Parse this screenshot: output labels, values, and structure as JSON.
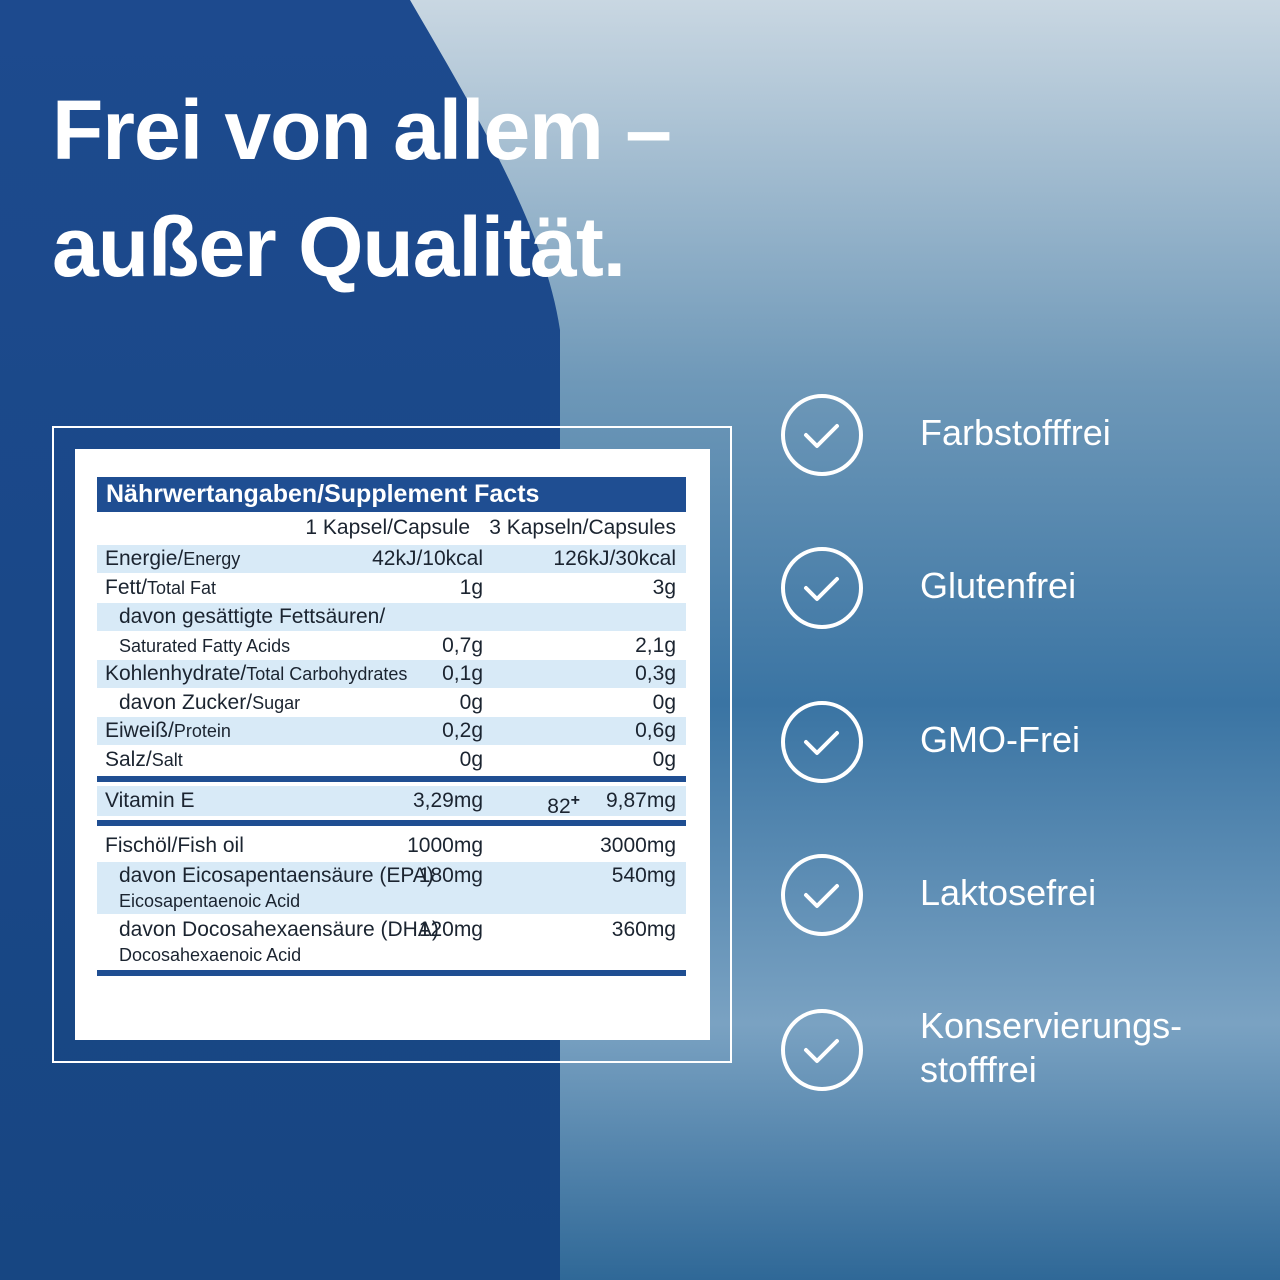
{
  "headline": [
    "Frei von allem –",
    "außer Qualität."
  ],
  "table": {
    "title": "Nährwertangaben/Supplement Facts",
    "columns": [
      "1 Kapsel/Capsule",
      "3 Kapseln/Capsules"
    ],
    "rows": [
      {
        "label": "Energie/",
        "sublabel": "Energy",
        "values": [
          "42kJ/10kcal",
          "126kJ/30kcal"
        ]
      },
      {
        "label": "Fett/",
        "sublabel": "Total Fat",
        "values": [
          "1g",
          "3g"
        ]
      },
      {
        "label": "davon gesättigte Fettsäuren/",
        "sublabel": "Saturated Fatty Acids",
        "values": [
          "0,7g",
          "2,1g"
        ]
      },
      {
        "label": "Kohlenhydrate/",
        "sublabel": "Total Carbohydrates",
        "values": [
          "0,1g",
          "0,3g"
        ]
      },
      {
        "label": "davon Zucker/",
        "sublabel": "Sugar",
        "values": [
          "0g",
          "0g"
        ]
      },
      {
        "label": "Eiweiß/",
        "sublabel": "Protein",
        "values": [
          "0,2g",
          "0,6g"
        ]
      },
      {
        "label": "Salz/",
        "sublabel": "Salt",
        "values": [
          "0g",
          "0g"
        ]
      },
      {
        "label": "Vitamin E",
        "values": [
          "3,29mg",
          "9,87mg"
        ],
        "note": "82",
        "note_mark": "+"
      },
      {
        "label": "Fischöl/Fish oil",
        "values": [
          "1000mg",
          "3000mg"
        ]
      },
      {
        "label": "davon Eicosapentaensäure (EPA)",
        "sublabel": "Eicosapentaenoic Acid",
        "values": [
          "180mg",
          "540mg"
        ]
      },
      {
        "label": "davon Docosahexaensäure (DHA)",
        "sublabel": "Docosahexaenoic Acid",
        "values": [
          "120mg",
          "360mg"
        ]
      }
    ]
  },
  "features": [
    [
      "Farbstofffrei"
    ],
    [
      "Glutenfrei"
    ],
    [
      "GMO-Frei"
    ],
    [
      "Laktosefrei"
    ],
    [
      "Konservierungs-",
      "stofffrei"
    ]
  ]
}
